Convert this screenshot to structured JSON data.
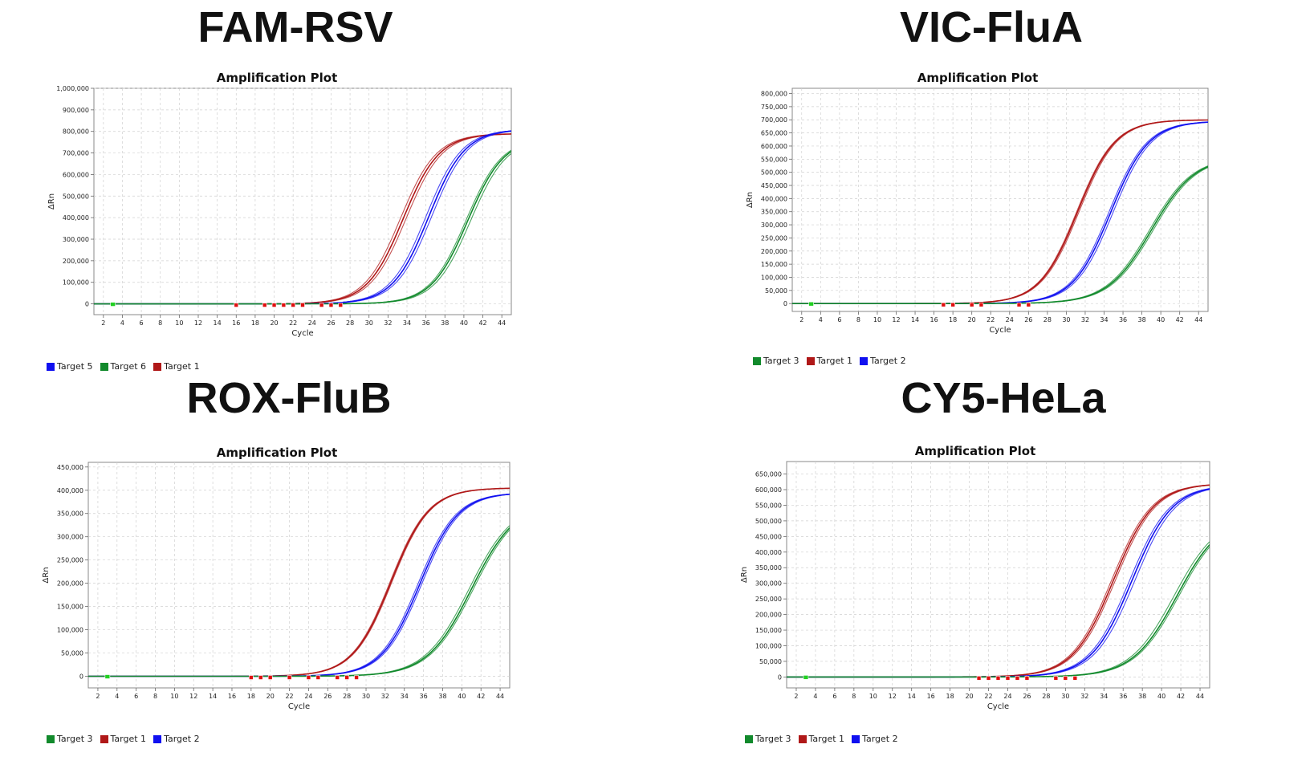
{
  "chart_data": [
    {
      "type": "line",
      "panel_title": "FAM-RSV",
      "title": "Amplification Plot",
      "xlabel": "Cycle",
      "ylabel": "ΔRn",
      "xlim": [
        1,
        45
      ],
      "ylim": [
        -50000,
        1000000
      ],
      "yticks": [
        0,
        100000,
        200000,
        300000,
        400000,
        500000,
        600000,
        700000,
        800000,
        900000,
        1000000
      ],
      "ytick_labels": [
        "0",
        "100,000",
        "200,000",
        "300,000",
        "400,000",
        "500,000",
        "600,000",
        "700,000",
        "800,000",
        "900,000",
        "1,000,000"
      ],
      "xticks": [
        2,
        4,
        6,
        8,
        10,
        12,
        14,
        16,
        18,
        20,
        22,
        24,
        26,
        28,
        30,
        32,
        34,
        36,
        38,
        40,
        42,
        44
      ],
      "legend": [
        {
          "name": "Target 5",
          "color": "#1010f0"
        },
        {
          "name": "Target 6",
          "color": "#128a2c"
        },
        {
          "name": "Target 1",
          "color": "#b01818"
        }
      ],
      "series": [
        {
          "name": "Target 1",
          "color": "#b01818",
          "plateau": 790000,
          "midpoint": 33.6,
          "slope": 1.9,
          "replicates": [
            0,
            0.3,
            -0.3
          ]
        },
        {
          "name": "Target 5",
          "color": "#1010f0",
          "plateau": 810000,
          "midpoint": 36.3,
          "slope": 1.9,
          "replicates": [
            0,
            0.3,
            -0.3
          ]
        },
        {
          "name": "Target 6",
          "color": "#128a2c",
          "plateau": 770000,
          "midpoint": 40.4,
          "slope": 1.9,
          "replicates": [
            0,
            0.3,
            -0.2
          ]
        }
      ],
      "threshold_markers": [
        16,
        19,
        20,
        21,
        22,
        23,
        25,
        26,
        27
      ],
      "start_marker": 3
    },
    {
      "type": "line",
      "panel_title": "VIC-FluA",
      "title": "Amplification Plot",
      "xlabel": "Cycle",
      "ylabel": "ΔRn",
      "xlim": [
        1,
        45
      ],
      "ylim": [
        -30000,
        820000
      ],
      "yticks": [
        0,
        50000,
        100000,
        150000,
        200000,
        250000,
        300000,
        350000,
        400000,
        450000,
        500000,
        550000,
        600000,
        650000,
        700000,
        750000,
        800000
      ],
      "ytick_labels": [
        "0",
        "50,000",
        "100,000",
        "150,000",
        "200,000",
        "250,000",
        "300,000",
        "350,000",
        "400,000",
        "450,000",
        "500,000",
        "550,000",
        "600,000",
        "650,000",
        "700,000",
        "750,000",
        "800,000"
      ],
      "xticks": [
        2,
        4,
        6,
        8,
        10,
        12,
        14,
        16,
        18,
        20,
        22,
        24,
        26,
        28,
        30,
        32,
        34,
        36,
        38,
        40,
        42,
        44
      ],
      "legend": [
        {
          "name": "Target 3",
          "color": "#128a2c"
        },
        {
          "name": "Target 1",
          "color": "#b01818"
        },
        {
          "name": "Target 2",
          "color": "#1010f0"
        }
      ],
      "series": [
        {
          "name": "Target 1",
          "color": "#b01818",
          "plateau": 700000,
          "midpoint": 31.2,
          "slope": 2.0,
          "replicates": [
            0,
            0.15,
            -0.1
          ]
        },
        {
          "name": "Target 2",
          "color": "#1010f0",
          "plateau": 695000,
          "midpoint": 34.7,
          "slope": 2.0,
          "replicates": [
            0,
            0.25,
            -0.2
          ]
        },
        {
          "name": "Target 3",
          "color": "#128a2c",
          "plateau": 560000,
          "midpoint": 39.0,
          "slope": 2.3,
          "replicates": [
            0,
            0.2,
            -0.2
          ]
        }
      ],
      "threshold_markers": [
        17,
        18,
        20,
        21,
        25,
        26
      ],
      "start_marker": 3
    },
    {
      "type": "line",
      "panel_title": "ROX-FluB",
      "title": "Amplification Plot",
      "xlabel": "Cycle",
      "ylabel": "ΔRn",
      "xlim": [
        1,
        45
      ],
      "ylim": [
        -25000,
        460000
      ],
      "yticks": [
        0,
        50000,
        100000,
        150000,
        200000,
        250000,
        300000,
        350000,
        400000,
        450000
      ],
      "ytick_labels": [
        "0",
        "50,000",
        "100,000",
        "150,000",
        "200,000",
        "250,000",
        "300,000",
        "350,000",
        "400,000",
        "450,000"
      ],
      "xticks": [
        2,
        4,
        6,
        8,
        10,
        12,
        14,
        16,
        18,
        20,
        22,
        24,
        26,
        28,
        30,
        32,
        34,
        36,
        38,
        40,
        42,
        44
      ],
      "legend": [
        {
          "name": "Target 3",
          "color": "#128a2c"
        },
        {
          "name": "Target 1",
          "color": "#b01818"
        },
        {
          "name": "Target 2",
          "color": "#1010f0"
        }
      ],
      "series": [
        {
          "name": "Target 1",
          "color": "#b01818",
          "plateau": 405000,
          "midpoint": 32.6,
          "slope": 2.0,
          "replicates": [
            0,
            0.1,
            -0.1
          ]
        },
        {
          "name": "Target 2",
          "color": "#1010f0",
          "plateau": 395000,
          "midpoint": 35.6,
          "slope": 2.0,
          "replicates": [
            0,
            0.2,
            -0.2
          ]
        },
        {
          "name": "Target 3",
          "color": "#128a2c",
          "plateau": 375000,
          "midpoint": 41.0,
          "slope": 2.3,
          "replicates": [
            0,
            0.2,
            -0.25
          ]
        }
      ],
      "threshold_markers": [
        18,
        19,
        20,
        22,
        24,
        25,
        27,
        28,
        29
      ],
      "start_marker": 3
    },
    {
      "type": "line",
      "panel_title": "CY5-HeLa",
      "title": "Amplification Plot",
      "xlabel": "Cycle",
      "ylabel": "ΔRn",
      "xlim": [
        1,
        45
      ],
      "ylim": [
        -35000,
        690000
      ],
      "yticks": [
        0,
        50000,
        100000,
        150000,
        200000,
        250000,
        300000,
        350000,
        400000,
        450000,
        500000,
        550000,
        600000,
        650000
      ],
      "ytick_labels": [
        "0",
        "50,000",
        "100,000",
        "150,000",
        "200,000",
        "250,000",
        "300,000",
        "350,000",
        "400,000",
        "450,000",
        "500,000",
        "550,000",
        "600,000",
        "650,000"
      ],
      "xticks": [
        2,
        4,
        6,
        8,
        10,
        12,
        14,
        16,
        18,
        20,
        22,
        24,
        26,
        28,
        30,
        32,
        34,
        36,
        38,
        40,
        42,
        44
      ],
      "legend": [
        {
          "name": "Target 3",
          "color": "#128a2c"
        },
        {
          "name": "Target 1",
          "color": "#b01818"
        },
        {
          "name": "Target 2",
          "color": "#1010f0"
        }
      ],
      "series": [
        {
          "name": "Target 1",
          "color": "#b01818",
          "plateau": 620000,
          "midpoint": 35.0,
          "slope": 2.1,
          "replicates": [
            0,
            0.2,
            -0.2
          ]
        },
        {
          "name": "Target 2",
          "color": "#1010f0",
          "plateau": 615000,
          "midpoint": 36.9,
          "slope": 2.1,
          "replicates": [
            0,
            0.3,
            -0.25
          ]
        },
        {
          "name": "Target 3",
          "color": "#128a2c",
          "plateau": 520000,
          "midpoint": 41.6,
          "slope": 2.3,
          "replicates": [
            0,
            0.2,
            -0.3
          ]
        }
      ],
      "threshold_markers": [
        21,
        22,
        23,
        24,
        25,
        26,
        29,
        30,
        31
      ],
      "start_marker": 3
    }
  ]
}
